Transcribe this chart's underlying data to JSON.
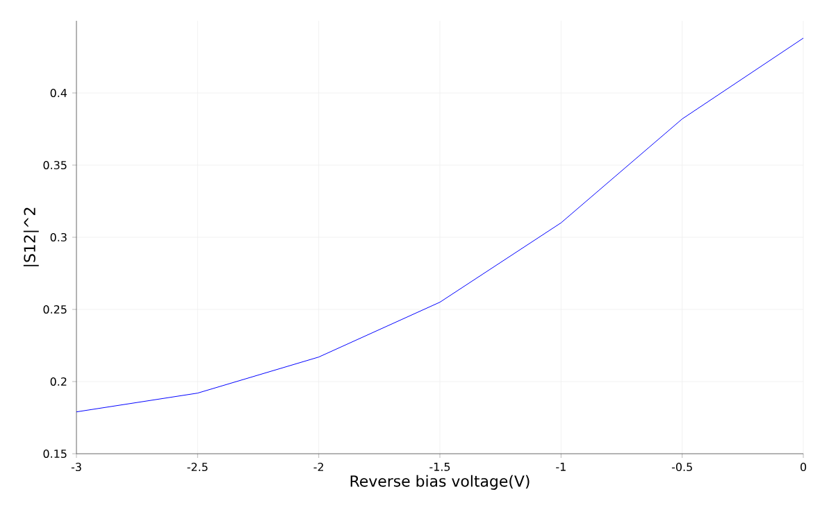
{
  "chart_data": {
    "type": "line",
    "xlabel": "Reverse bias voltage(V)",
    "ylabel": "|S12|^2",
    "x": [
      -3,
      -2.5,
      -2,
      -1.5,
      -1,
      -0.5,
      0
    ],
    "series": [
      {
        "color": "#0000ff",
        "values": [
          0.179,
          0.192,
          0.217,
          0.255,
          0.31,
          0.382,
          0.438
        ]
      }
    ],
    "xlim": [
      -3,
      0
    ],
    "ylim": [
      0.15,
      0.45
    ],
    "xticks": [
      -3,
      -2.5,
      -2,
      -1.5,
      -1,
      -0.5,
      0
    ],
    "yticks": [
      0.15,
      0.2,
      0.25,
      0.3,
      0.35,
      0.4
    ],
    "grid": true,
    "marker": "none",
    "line_style": "solid"
  }
}
